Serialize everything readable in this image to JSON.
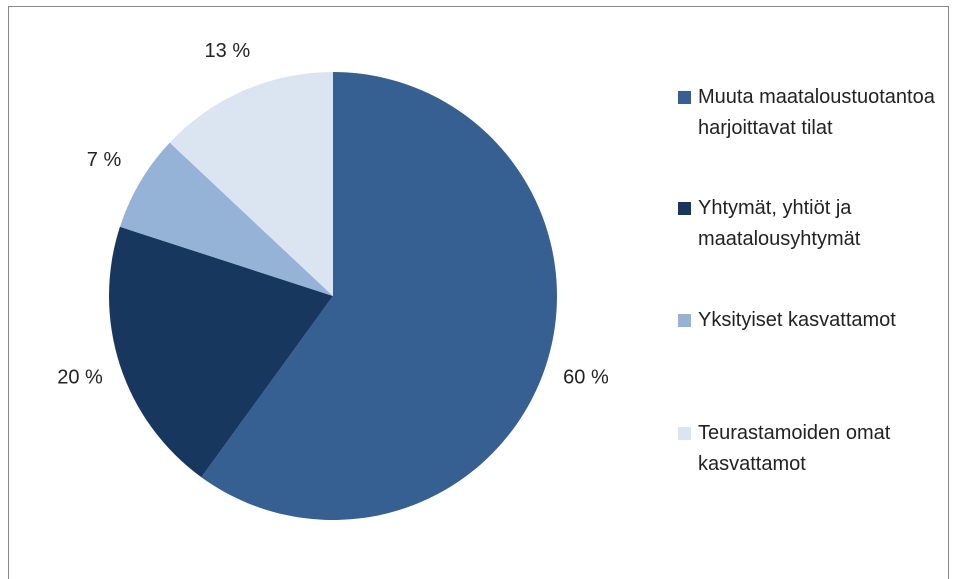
{
  "chart_data": {
    "type": "pie",
    "categories": [
      "Muuta maataloustuotantoa harjoittavat tilat",
      "Yhtymät, yhtiöt ja maatalousyhtymät",
      "Yksityiset kasvattamot",
      "Teurastamoiden omat kasvattamot"
    ],
    "values": [
      60,
      20,
      7,
      13
    ],
    "value_labels": [
      "60 %",
      "20 %",
      "7 %",
      "13 %"
    ],
    "colors": [
      "#365f92",
      "#17375e",
      "#95b3d7",
      "#dbe5f1"
    ],
    "legend": "right"
  }
}
